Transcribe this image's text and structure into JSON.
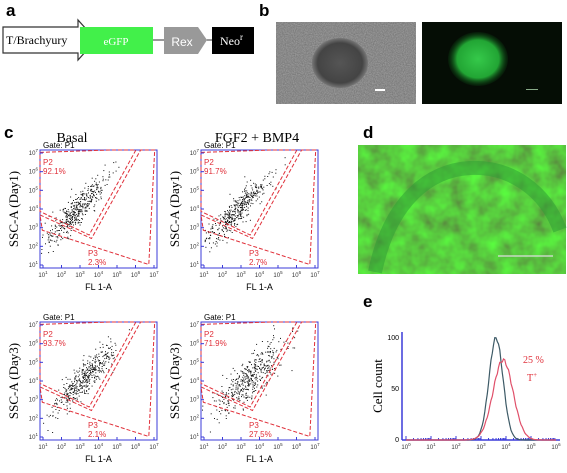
{
  "panel_labels": [
    "a",
    "b",
    "c",
    "d",
    "e"
  ],
  "construct": {
    "promoter": "T/Brachyury",
    "reporter": "eGFP",
    "element": "Rex",
    "marker": "Neo",
    "marker_superscript": "r"
  },
  "flow": {
    "column_titles": [
      "Basal",
      "FGF2 + BMP4"
    ],
    "row_labels": [
      "SSC-A (Day1)",
      "SSC-A (Day3)"
    ],
    "x_label": "FL 1-A",
    "gate": "Gate: P1",
    "tick_base": "10",
    "tick_exponents": [
      "1",
      "2",
      "3",
      "4",
      "5",
      "6",
      "7"
    ],
    "plots": [
      {
        "p2_name": "P2",
        "p2": "92.1%",
        "p3_name": "P3",
        "p3": "2.3%"
      },
      {
        "p2_name": "P2",
        "p2": "91.7%",
        "p3_name": "P3",
        "p3": "2.7%"
      },
      {
        "p2_name": "P2",
        "p2": "93.7%",
        "p3_name": "P3",
        "p3": "2.1%"
      },
      {
        "p2_name": "P2",
        "p2": "71.9%",
        "p3_name": "P3",
        "p3": "27.5%"
      }
    ]
  },
  "histogram": {
    "y_label": "Cell count",
    "yticks": [
      "0",
      "50",
      "100"
    ],
    "tick_base": "10",
    "x_exponents": [
      "0",
      "1",
      "2",
      "3",
      "4",
      "5",
      "6"
    ],
    "annotation": "25 %",
    "annotation_marker": "T",
    "annotation_marker_superscript": "+"
  }
}
